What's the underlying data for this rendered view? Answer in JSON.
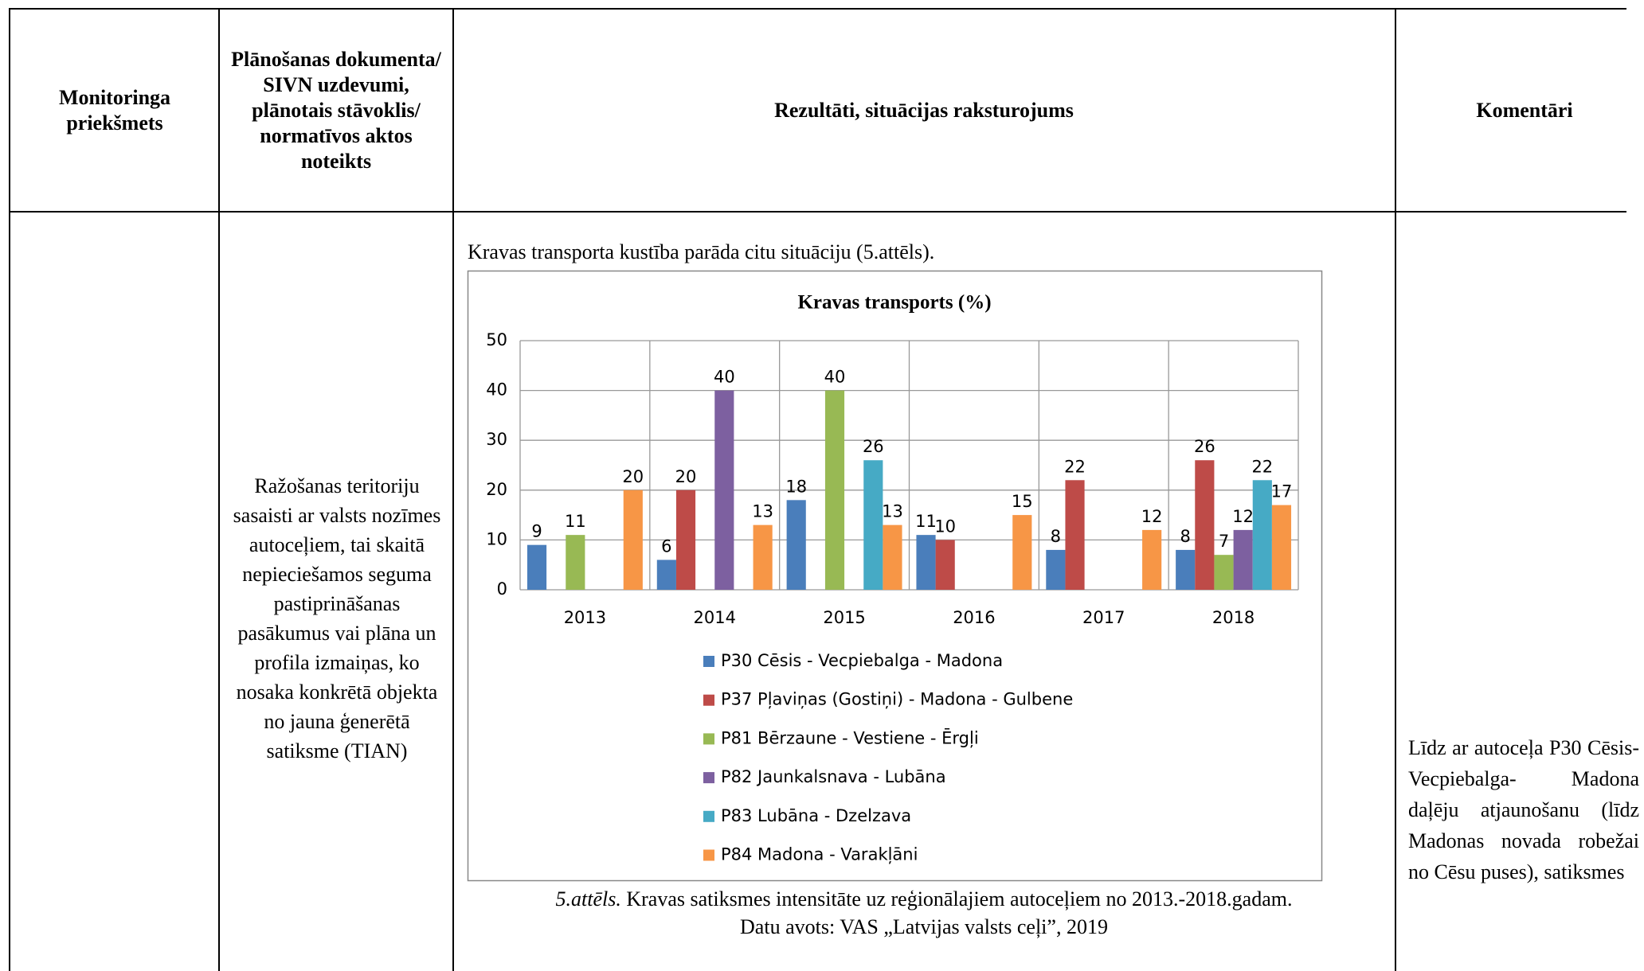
{
  "table": {
    "header": [
      "Monitoringa priekšmets",
      "Plānošanas dokumenta/ SIVN uzdevumi, plānotais stāvoklis/ normatīvos aktos noteikts",
      "Rezultāti, situācijas raksturojums",
      "Komentāri"
    ],
    "body": {
      "task": "Ražošanas teritoriju sasaisti ar valsts nozīmes autoceļiem, tai skaitā nepieciešamos seguma pastiprināšanas pasākumus vai plāna un profila izmaiņas, ko nosaka konkrētā objekta no jauna ģenerētā satiksme (TIAN)",
      "results_intro": "Kravas transporta kustība parāda citu situāciju (5.attēls).",
      "caption_label": "5.attēls.",
      "caption": "Kravas satiksmes intensitāte uz reģionālajiem autoceļiem no 2013.-2018.gadam.",
      "source": "Datu avots: VAS „Latvijas valsts ceļi”, 2019",
      "comment": "Līdz ar autoceļa P30 Cēsis-Vecpiebalga- Madona daļēju atjaunošanu (līdz Madonas novada robežai no Cēsu puses), satiksmes"
    }
  },
  "chart_data": {
    "type": "bar",
    "title": "Kravas transports (%)",
    "categories": [
      "2013",
      "2014",
      "2015",
      "2016",
      "2017",
      "2018"
    ],
    "series": [
      {
        "name": "P30 Cēsis - Vecpiebalga - Madona",
        "color": "#4a7ebb",
        "values": [
          9,
          6,
          18,
          11,
          8,
          8
        ]
      },
      {
        "name": "P37 Pļaviņas (Gostiņi) - Madona - Gulbene",
        "color": "#be4b48",
        "values": [
          null,
          20,
          null,
          10,
          22,
          26
        ]
      },
      {
        "name": "P81 Bērzaune - Vestiene - Ērgļi",
        "color": "#98b954",
        "values": [
          11,
          null,
          40,
          null,
          null,
          7
        ]
      },
      {
        "name": "P82 Jaunkalsnava - Lubāna",
        "color": "#7d60a0",
        "values": [
          null,
          40,
          null,
          null,
          null,
          12
        ]
      },
      {
        "name": "P83 Lubāna - Dzelzava",
        "color": "#46aac5",
        "values": [
          null,
          null,
          26,
          null,
          null,
          22
        ]
      },
      {
        "name": "P84 Madona - Varakļāni",
        "color": "#f79646",
        "values": [
          20,
          13,
          13,
          15,
          12,
          17
        ]
      }
    ],
    "ylim": [
      0,
      50
    ],
    "yticks": [
      0,
      10,
      20,
      30,
      40,
      50
    ],
    "grid": true,
    "legend": "bottom"
  }
}
